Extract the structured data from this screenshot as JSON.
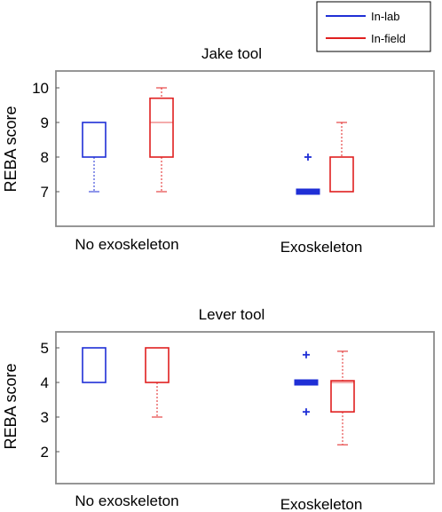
{
  "legend": {
    "placement": "top-right",
    "entries": [
      {
        "label": "In-lab",
        "color": "#1f2fd6"
      },
      {
        "label": "In-field",
        "color": "#e02020"
      }
    ]
  },
  "colors": {
    "in_lab": "#1f2fd6",
    "in_field": "#e02020",
    "frame": "#8a8a8a"
  },
  "chart_data": [
    {
      "type": "box",
      "title": "Jake tool",
      "xlabel": "",
      "ylabel": "REBA score",
      "ylim": [
        6.2,
        10.4
      ],
      "yticks": [
        7,
        8,
        9,
        10
      ],
      "grid": false,
      "categories": [
        "No exoskeleton",
        "Exoskeleton"
      ],
      "series": [
        {
          "name": "In-lab",
          "boxes": [
            {
              "category": "No exoskeleton",
              "whisker_low": 7,
              "q1": 8,
              "median": 9,
              "q3": 9,
              "whisker_high": 9,
              "outliers": []
            },
            {
              "category": "Exoskeleton",
              "whisker_low": 7,
              "q1": 7,
              "median": 7,
              "q3": 7,
              "whisker_high": 7,
              "outliers": [
                8
              ]
            }
          ]
        },
        {
          "name": "In-field",
          "boxes": [
            {
              "category": "No exoskeleton",
              "whisker_low": 7,
              "q1": 8,
              "median": 9,
              "q3": 9.7,
              "whisker_high": 10,
              "outliers": []
            },
            {
              "category": "Exoskeleton",
              "whisker_low": 7,
              "q1": 7,
              "median": 7,
              "q3": 8,
              "whisker_high": 9,
              "outliers": []
            }
          ]
        }
      ]
    },
    {
      "type": "box",
      "title": "Lever tool",
      "xlabel": "",
      "ylabel": "REBA score",
      "ylim": [
        1.5,
        5.4
      ],
      "yticks": [
        2,
        3,
        4,
        5
      ],
      "grid": false,
      "categories": [
        "No exoskeleton",
        "Exoskeleton"
      ],
      "series": [
        {
          "name": "In-lab",
          "boxes": [
            {
              "category": "No exoskeleton",
              "whisker_low": 4,
              "q1": 4,
              "median": 5,
              "q3": 5,
              "whisker_high": 5,
              "outliers": []
            },
            {
              "category": "Exoskeleton",
              "whisker_low": 4,
              "q1": 4,
              "median": 4,
              "q3": 4,
              "whisker_high": 4,
              "outliers": [
                4.8,
                3.15
              ]
            }
          ]
        },
        {
          "name": "In-field",
          "boxes": [
            {
              "category": "No exoskeleton",
              "whisker_low": 3,
              "q1": 4,
              "median": 5,
              "q3": 5,
              "whisker_high": 5,
              "outliers": []
            },
            {
              "category": "Exoskeleton",
              "whisker_low": 2.2,
              "q1": 3.15,
              "median": 4,
              "q3": 4.05,
              "whisker_high": 4.9,
              "outliers": []
            }
          ]
        }
      ]
    }
  ]
}
